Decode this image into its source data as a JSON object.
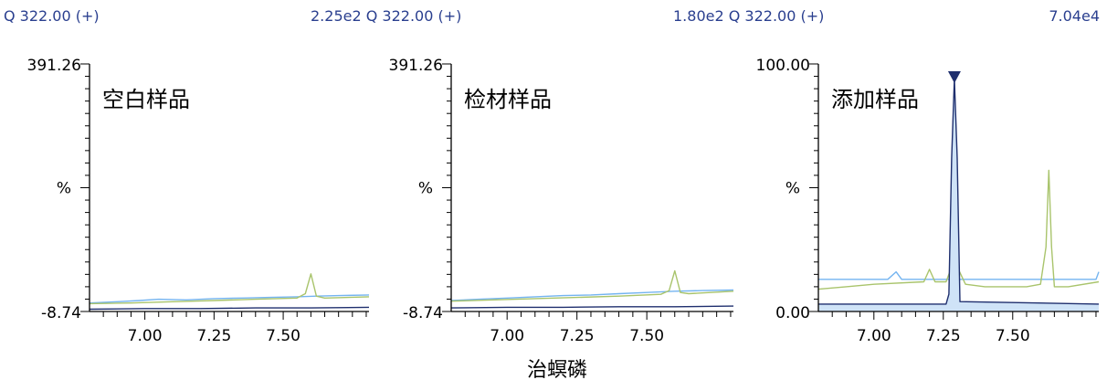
{
  "headers": [
    {
      "text": "Q 322.00 (+)"
    },
    {
      "text": "2.25e2 Q 322.00 (+)"
    },
    {
      "text": "1.80e2 Q 322.00 (+)"
    },
    {
      "text": "7.04e4"
    }
  ],
  "colors": {
    "header_text": "#2a3f8f",
    "series_dark": "#1f2f6e",
    "series_light_blue": "#74b4f0",
    "series_green": "#a9c46c",
    "peak_fill": "#cfe3f7"
  },
  "chart_data": [
    {
      "type": "line",
      "title": "空白样品",
      "ylabel": "%",
      "xlim": [
        6.8,
        7.81
      ],
      "ylim": [
        -8.74,
        391.26
      ],
      "y_tick_labels": [
        "391.26",
        "-8.74"
      ],
      "x_ticks": [
        7.0,
        7.25,
        7.5
      ],
      "x_tick_labels": [
        "7.00",
        "7.25",
        "7.50"
      ],
      "series": [
        {
          "color": "#74b4f0",
          "x": [
            6.8,
            6.9,
            6.98,
            7.05,
            7.15,
            7.25,
            7.35,
            7.45,
            7.55,
            7.62,
            7.7,
            7.81
          ],
          "y": [
            5,
            7,
            9,
            11,
            10,
            12,
            13,
            14,
            15,
            16,
            17,
            18
          ]
        },
        {
          "color": "#a9c46c",
          "x": [
            6.8,
            6.95,
            7.1,
            7.25,
            7.4,
            7.55,
            7.58,
            7.6,
            7.62,
            7.65,
            7.81
          ],
          "y": [
            4,
            5,
            7,
            9,
            11,
            13,
            20,
            52,
            16,
            13,
            15
          ]
        },
        {
          "color": "#1f2f6e",
          "x": [
            6.8,
            7.0,
            7.2,
            7.4,
            7.6,
            7.81
          ],
          "y": [
            -5,
            -4,
            -4,
            -3,
            -3,
            -2
          ]
        }
      ]
    },
    {
      "type": "line",
      "title": "检材样品",
      "ylabel": "%",
      "xlim": [
        6.8,
        7.81
      ],
      "ylim": [
        -8.74,
        391.26
      ],
      "y_tick_labels": [
        "391.26",
        "-8.74"
      ],
      "x_ticks": [
        7.0,
        7.25,
        7.5
      ],
      "x_tick_labels": [
        "7.00",
        "7.25",
        "7.50"
      ],
      "series": [
        {
          "color": "#74b4f0",
          "x": [
            6.8,
            6.9,
            7.0,
            7.1,
            7.2,
            7.3,
            7.4,
            7.5,
            7.6,
            7.7,
            7.81
          ],
          "y": [
            9,
            11,
            13,
            15,
            17,
            18,
            20,
            22,
            24,
            25,
            26
          ]
        },
        {
          "color": "#a9c46c",
          "x": [
            6.8,
            6.95,
            7.1,
            7.25,
            7.4,
            7.55,
            7.58,
            7.6,
            7.62,
            7.65,
            7.81
          ],
          "y": [
            8,
            10,
            12,
            14,
            16,
            19,
            25,
            57,
            22,
            20,
            24
          ]
        },
        {
          "color": "#1f2f6e",
          "x": [
            6.8,
            7.0,
            7.2,
            7.4,
            7.6,
            7.81
          ],
          "y": [
            -3,
            -2,
            -2,
            -1,
            -1,
            0
          ]
        }
      ]
    },
    {
      "type": "line",
      "title": "添加样品",
      "ylabel": "%",
      "xlim": [
        6.8,
        7.81
      ],
      "ylim": [
        0.0,
        100.0
      ],
      "y_tick_labels": [
        "100.00",
        "0.00"
      ],
      "x_ticks": [
        7.0,
        7.25,
        7.5
      ],
      "x_tick_labels": [
        "7.00",
        "7.25",
        "7.50"
      ],
      "series": [
        {
          "color": "#74b4f0",
          "x": [
            6.8,
            7.05,
            7.08,
            7.1,
            7.3,
            7.6,
            7.8,
            7.81
          ],
          "y": [
            13,
            13,
            16,
            13,
            13,
            13,
            13,
            16
          ]
        },
        {
          "color": "#a9c46c",
          "x": [
            6.8,
            6.9,
            7.0,
            7.18,
            7.2,
            7.22,
            7.26,
            7.28,
            7.29,
            7.3,
            7.33,
            7.4,
            7.55,
            7.6,
            7.62,
            7.63,
            7.64,
            7.65,
            7.7,
            7.81
          ],
          "y": [
            9,
            10,
            11,
            12,
            17,
            12,
            12,
            18,
            52,
            18,
            11,
            10,
            10,
            11,
            26,
            57,
            26,
            10,
            10,
            12
          ]
        },
        {
          "color": "#1f2f6e",
          "x": [
            6.8,
            7.26,
            7.27,
            7.28,
            7.29,
            7.3,
            7.31,
            7.81
          ],
          "y": [
            3,
            3,
            7,
            62,
            94,
            62,
            4,
            3
          ]
        }
      ],
      "peak_marker_x": 7.29
    }
  ],
  "x_axis_title": "治螟磷"
}
